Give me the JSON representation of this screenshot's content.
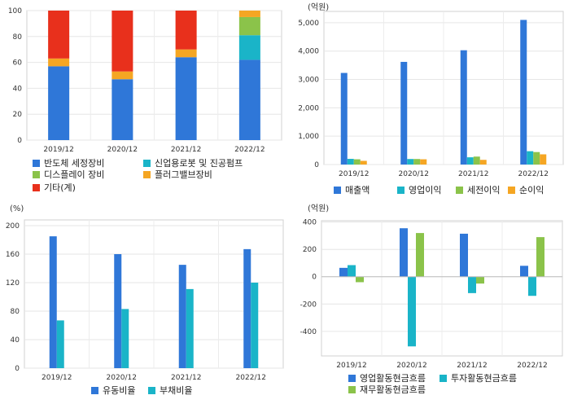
{
  "chart_data": [
    {
      "type": "bar",
      "stacked": true,
      "categories": [
        "2019/12",
        "2020/12",
        "2021/12",
        "2022/12"
      ],
      "series": [
        {
          "name": "반도체 세정장비",
          "color": "#2f77d8",
          "values": [
            57,
            47,
            64,
            62
          ]
        },
        {
          "name": "신업용로봇 및 진공펌프",
          "color": "#1ab4c8",
          "values": [
            0,
            0,
            0,
            19
          ]
        },
        {
          "name": "디스플레이 장비",
          "color": "#8bc34a",
          "values": [
            0,
            0,
            0,
            14
          ]
        },
        {
          "name": "플러그밸브장비",
          "color": "#f5a623",
          "values": [
            6,
            6,
            6,
            5
          ]
        },
        {
          "name": "기타(계)",
          "color": "#e8301c",
          "values": [
            37,
            47,
            30,
            0
          ]
        }
      ],
      "ylim": [
        0,
        100
      ],
      "yticks": [
        0,
        20,
        40,
        60,
        80,
        100
      ],
      "ytick_labels": [
        "0",
        "20",
        "40",
        "60",
        "80",
        "100"
      ],
      "unit": "",
      "grid": true,
      "legend": "bottom"
    },
    {
      "type": "bar",
      "categories": [
        "2019/12",
        "2020/12",
        "2021/12",
        "2022/12"
      ],
      "series": [
        {
          "name": "매출액",
          "color": "#2f77d8",
          "values": [
            3230,
            3620,
            4030,
            5100
          ]
        },
        {
          "name": "영업이익",
          "color": "#1ab4c8",
          "values": [
            200,
            195,
            255,
            470
          ]
        },
        {
          "name": "세전이익",
          "color": "#8bc34a",
          "values": [
            185,
            195,
            280,
            440
          ]
        },
        {
          "name": "순이익",
          "color": "#f5a623",
          "values": [
            130,
            185,
            165,
            360
          ]
        }
      ],
      "ylim": [
        0,
        5400
      ],
      "yticks": [
        0,
        1000,
        2000,
        3000,
        4000,
        5000
      ],
      "ytick_labels": [
        "0",
        "1,000",
        "2,000",
        "3,000",
        "4,000",
        "5,000"
      ],
      "unit": "(억원)",
      "grid": true,
      "legend": "bottom"
    },
    {
      "type": "bar",
      "categories": [
        "2019/12",
        "2020/12",
        "2021/12",
        "2022/12"
      ],
      "series": [
        {
          "name": "유동비율",
          "color": "#2f77d8",
          "values": [
            185,
            160,
            145,
            167
          ]
        },
        {
          "name": "부채비율",
          "color": "#1ab4c8",
          "values": [
            67,
            83,
            111,
            120
          ]
        }
      ],
      "ylim": [
        0,
        208
      ],
      "yticks": [
        0,
        40,
        80,
        120,
        160,
        200
      ],
      "ytick_labels": [
        "0",
        "40",
        "80",
        "120",
        "160",
        "200"
      ],
      "unit": "(%)",
      "grid": true,
      "legend": "bottom"
    },
    {
      "type": "bar",
      "categories": [
        "2019/12",
        "2020/12",
        "2021/12",
        "2022/12"
      ],
      "series": [
        {
          "name": "영업활동현금흐름",
          "color": "#2f77d8",
          "values": [
            65,
            355,
            315,
            80
          ]
        },
        {
          "name": "투자활동현금흐름",
          "color": "#1ab4c8",
          "values": [
            85,
            -510,
            -120,
            -140
          ]
        },
        {
          "name": "재무활동현금흐름",
          "color": "#8bc34a",
          "values": [
            -40,
            320,
            -50,
            290
          ]
        }
      ],
      "ylim": [
        -580,
        410
      ],
      "yticks": [
        -400,
        -200,
        0,
        200,
        400
      ],
      "ytick_labels": [
        "-400",
        "-200",
        "0",
        "200",
        "400"
      ],
      "unit": "(억원)",
      "grid": true,
      "legend": "bottom"
    }
  ]
}
